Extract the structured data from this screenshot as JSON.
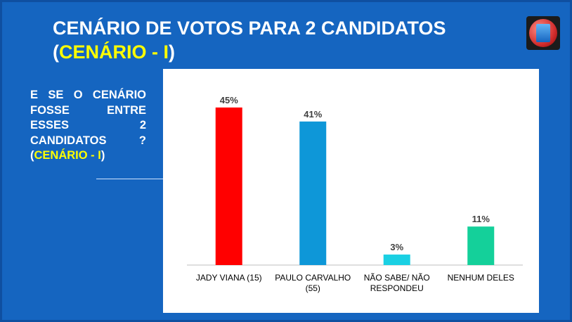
{
  "slide": {
    "title_line1": "CENÁRIO DE VOTOS PARA 2 CANDIDATOS",
    "title_open": "(",
    "title_accent": "CENÁRIO - I",
    "title_close": ")",
    "question_lines": [
      "E SE O CENÁRIO",
      "FOSSE ENTRE",
      "ESSES 2",
      "CANDIDATOS ?"
    ],
    "question_open": "(",
    "question_accent": "CENÁRIO - I",
    "question_close": ")",
    "logo_icon": "party-logo-icon"
  },
  "colors": {
    "background": "#1565c0",
    "accent_text": "#ffff00"
  },
  "chart_data": {
    "type": "bar",
    "categories": [
      "JADY VIANA (15)",
      "PAULO CARVALHO (55)",
      "NÃO SABE/ NÃO RESPONDEU",
      "NENHUM DELES"
    ],
    "values": [
      45,
      41,
      3,
      11
    ],
    "value_labels": [
      "45%",
      "41%",
      "3%",
      "11%"
    ],
    "colors": [
      "#ff0000",
      "#0e97d8",
      "#1ad0e3",
      "#14d09a"
    ],
    "ylim": [
      0,
      50
    ],
    "grid": false,
    "legend": "none"
  }
}
